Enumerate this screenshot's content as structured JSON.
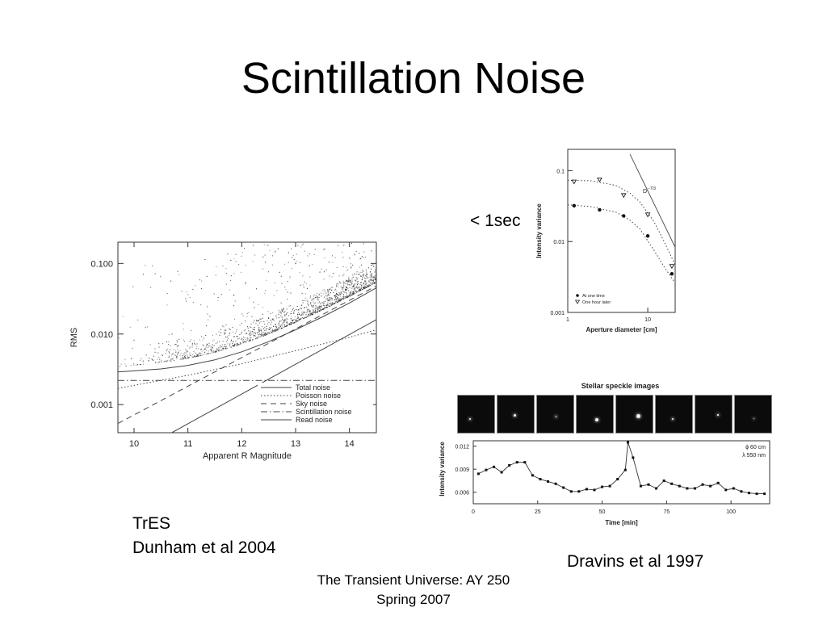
{
  "slide": {
    "title": "Scintillation Noise",
    "captions": {
      "exposure": "< 1sec",
      "tres_line1": "TrES",
      "tres_line2": "Dunham et al 2004",
      "dravins": "Dravins et al 1997"
    },
    "footer": {
      "line1": "The Transient Universe:  AY 250",
      "line2": "Spring 2007"
    }
  },
  "chart_data": [
    {
      "id": "tres",
      "type": "scatter",
      "xlabel": "Apparent R Magnitude",
      "ylabel": "RMS",
      "x_scale": "linear",
      "y_scale": "log",
      "xlim": [
        9.7,
        14.5
      ],
      "ylim": [
        0.0004,
        0.2
      ],
      "xticks": [
        10,
        11,
        12,
        13,
        14
      ],
      "yticks": [
        {
          "value": 0.1,
          "label": "0.100"
        },
        {
          "value": 0.01,
          "label": "0.010"
        },
        {
          "value": 0.001,
          "label": "0.001"
        }
      ],
      "legend_position": "bottom-right",
      "legend": [
        {
          "label": "Total noise",
          "style": "solid"
        },
        {
          "label": "Poisson noise",
          "style": "dotted"
        },
        {
          "label": "Sky noise",
          "style": "dashed"
        },
        {
          "label": "Scintillation noise",
          "style": "dashdot"
        },
        {
          "label": "Read noise",
          "style": "solid"
        }
      ],
      "series": [
        {
          "name": "Total noise",
          "style": "solid",
          "x": [
            9.7,
            10.5,
            11.0,
            11.5,
            12.0,
            12.5,
            13.0,
            13.5,
            14.0,
            14.5
          ],
          "y": [
            0.0029,
            0.0032,
            0.0036,
            0.0043,
            0.0056,
            0.0078,
            0.0115,
            0.0175,
            0.0275,
            0.045
          ]
        },
        {
          "name": "Poisson noise",
          "style": "dotted",
          "x": [
            9.7,
            11.0,
            12.0,
            13.0,
            14.0,
            14.5
          ],
          "y": [
            0.0017,
            0.0026,
            0.0038,
            0.0058,
            0.009,
            0.0115
          ]
        },
        {
          "name": "Sky noise",
          "style": "dashed",
          "x": [
            9.7,
            14.5
          ],
          "y": [
            0.00054,
            0.048
          ]
        },
        {
          "name": "Scintillation noise",
          "style": "dashdot",
          "x": [
            9.7,
            14.5
          ],
          "y": [
            0.0022,
            0.0022
          ]
        },
        {
          "name": "Read noise",
          "style": "solid",
          "x": [
            10.7,
            14.5
          ],
          "y": [
            0.0004,
            0.016
          ]
        }
      ],
      "point_cloud": {
        "description_visible": "dense scatter of stars lying above the total noise curve",
        "lower_envelope_x": [
          9.7,
          10.5,
          11.0,
          11.5,
          12.0,
          12.5,
          13.0,
          13.5,
          14.0,
          14.5
        ],
        "lower_envelope_y": [
          0.0035,
          0.004,
          0.0046,
          0.0056,
          0.0074,
          0.0102,
          0.015,
          0.0225,
          0.035,
          0.055
        ]
      }
    },
    {
      "id": "dravins-aperture",
      "type": "scatter",
      "xlabel": "Aperture diameter [cm]",
      "ylabel": "Intensity variance",
      "x_scale": "log",
      "y_scale": "log",
      "xlim": [
        1,
        22
      ],
      "ylim": [
        0.001,
        0.2
      ],
      "xticks": [
        {
          "value": 1,
          "label": "1"
        },
        {
          "value": 10,
          "label": "10"
        }
      ],
      "yticks": [
        {
          "value": 0.1,
          "label": "0.1"
        },
        {
          "value": 0.01,
          "label": "0.01"
        },
        {
          "value": 0.001,
          "label": "0.001"
        }
      ],
      "annotation": "D",
      "annotation_exponent": "−7/3",
      "legend_position": "bottom-left",
      "legend": [
        {
          "label": "At one time",
          "marker": "filled-circle"
        },
        {
          "label": "One hour later",
          "marker": "open-triangle"
        }
      ],
      "series": [
        {
          "name": "At one time",
          "marker": "filled-circle",
          "x": [
            1.2,
            2.5,
            5,
            10,
            20
          ],
          "y": [
            0.032,
            0.028,
            0.023,
            0.012,
            0.0035
          ]
        },
        {
          "name": "One hour later",
          "marker": "open-triangle",
          "x": [
            1.2,
            2.5,
            5,
            10,
            20
          ],
          "y": [
            0.07,
            0.075,
            0.045,
            0.024,
            0.0045
          ]
        }
      ],
      "fit_curves": [
        {
          "style": "dotted",
          "x": [
            1,
            2,
            4,
            6,
            8,
            12,
            16,
            22
          ],
          "y": [
            0.073,
            0.072,
            0.062,
            0.048,
            0.036,
            0.019,
            0.01,
            0.0047
          ]
        },
        {
          "style": "dotted",
          "x": [
            1,
            2,
            4,
            6,
            8,
            12,
            16,
            22
          ],
          "y": [
            0.033,
            0.031,
            0.026,
            0.02,
            0.015,
            0.0075,
            0.0044,
            0.0026
          ]
        }
      ],
      "slope_line": {
        "x": [
          6,
          22
        ],
        "y": [
          0.17,
          0.0083
        ]
      }
    },
    {
      "id": "dravins-time",
      "type": "line",
      "title": "Stellar speckle images",
      "xlabel": "Time [min]",
      "ylabel": "Intensity variance",
      "xlim": [
        0,
        115
      ],
      "ylim": [
        0.0045,
        0.0127
      ],
      "xticks": [
        0,
        25,
        50,
        75,
        100
      ],
      "yticks": [
        {
          "value": 0.006,
          "label": "0.006"
        },
        {
          "value": 0.009,
          "label": "0.009"
        },
        {
          "value": 0.012,
          "label": "0.012"
        }
      ],
      "legend_lines": [
        "ϕ 60 cm",
        "λ 550 nm"
      ],
      "legend_position": "top-right",
      "speckle_frames": 8,
      "series": [
        {
          "x": [
            2,
            5,
            8,
            11,
            14,
            17,
            20,
            23,
            26,
            29,
            32,
            35,
            38,
            41,
            44,
            47,
            50,
            53,
            56,
            59,
            60,
            62,
            65,
            68,
            71,
            74,
            77,
            80,
            83,
            86,
            89,
            92,
            95,
            98,
            101,
            104,
            107,
            110,
            113
          ],
          "y": [
            0.0084,
            0.0089,
            0.0093,
            0.0086,
            0.0095,
            0.0099,
            0.0099,
            0.0082,
            0.0077,
            0.0074,
            0.0071,
            0.0066,
            0.0061,
            0.0061,
            0.0064,
            0.0063,
            0.0067,
            0.0068,
            0.0077,
            0.0089,
            0.0125,
            0.0105,
            0.0068,
            0.007,
            0.0065,
            0.0075,
            0.0071,
            0.0068,
            0.0065,
            0.0065,
            0.007,
            0.0068,
            0.0072,
            0.0063,
            0.0065,
            0.0061,
            0.0059,
            0.0058,
            0.0058
          ]
        }
      ]
    }
  ]
}
